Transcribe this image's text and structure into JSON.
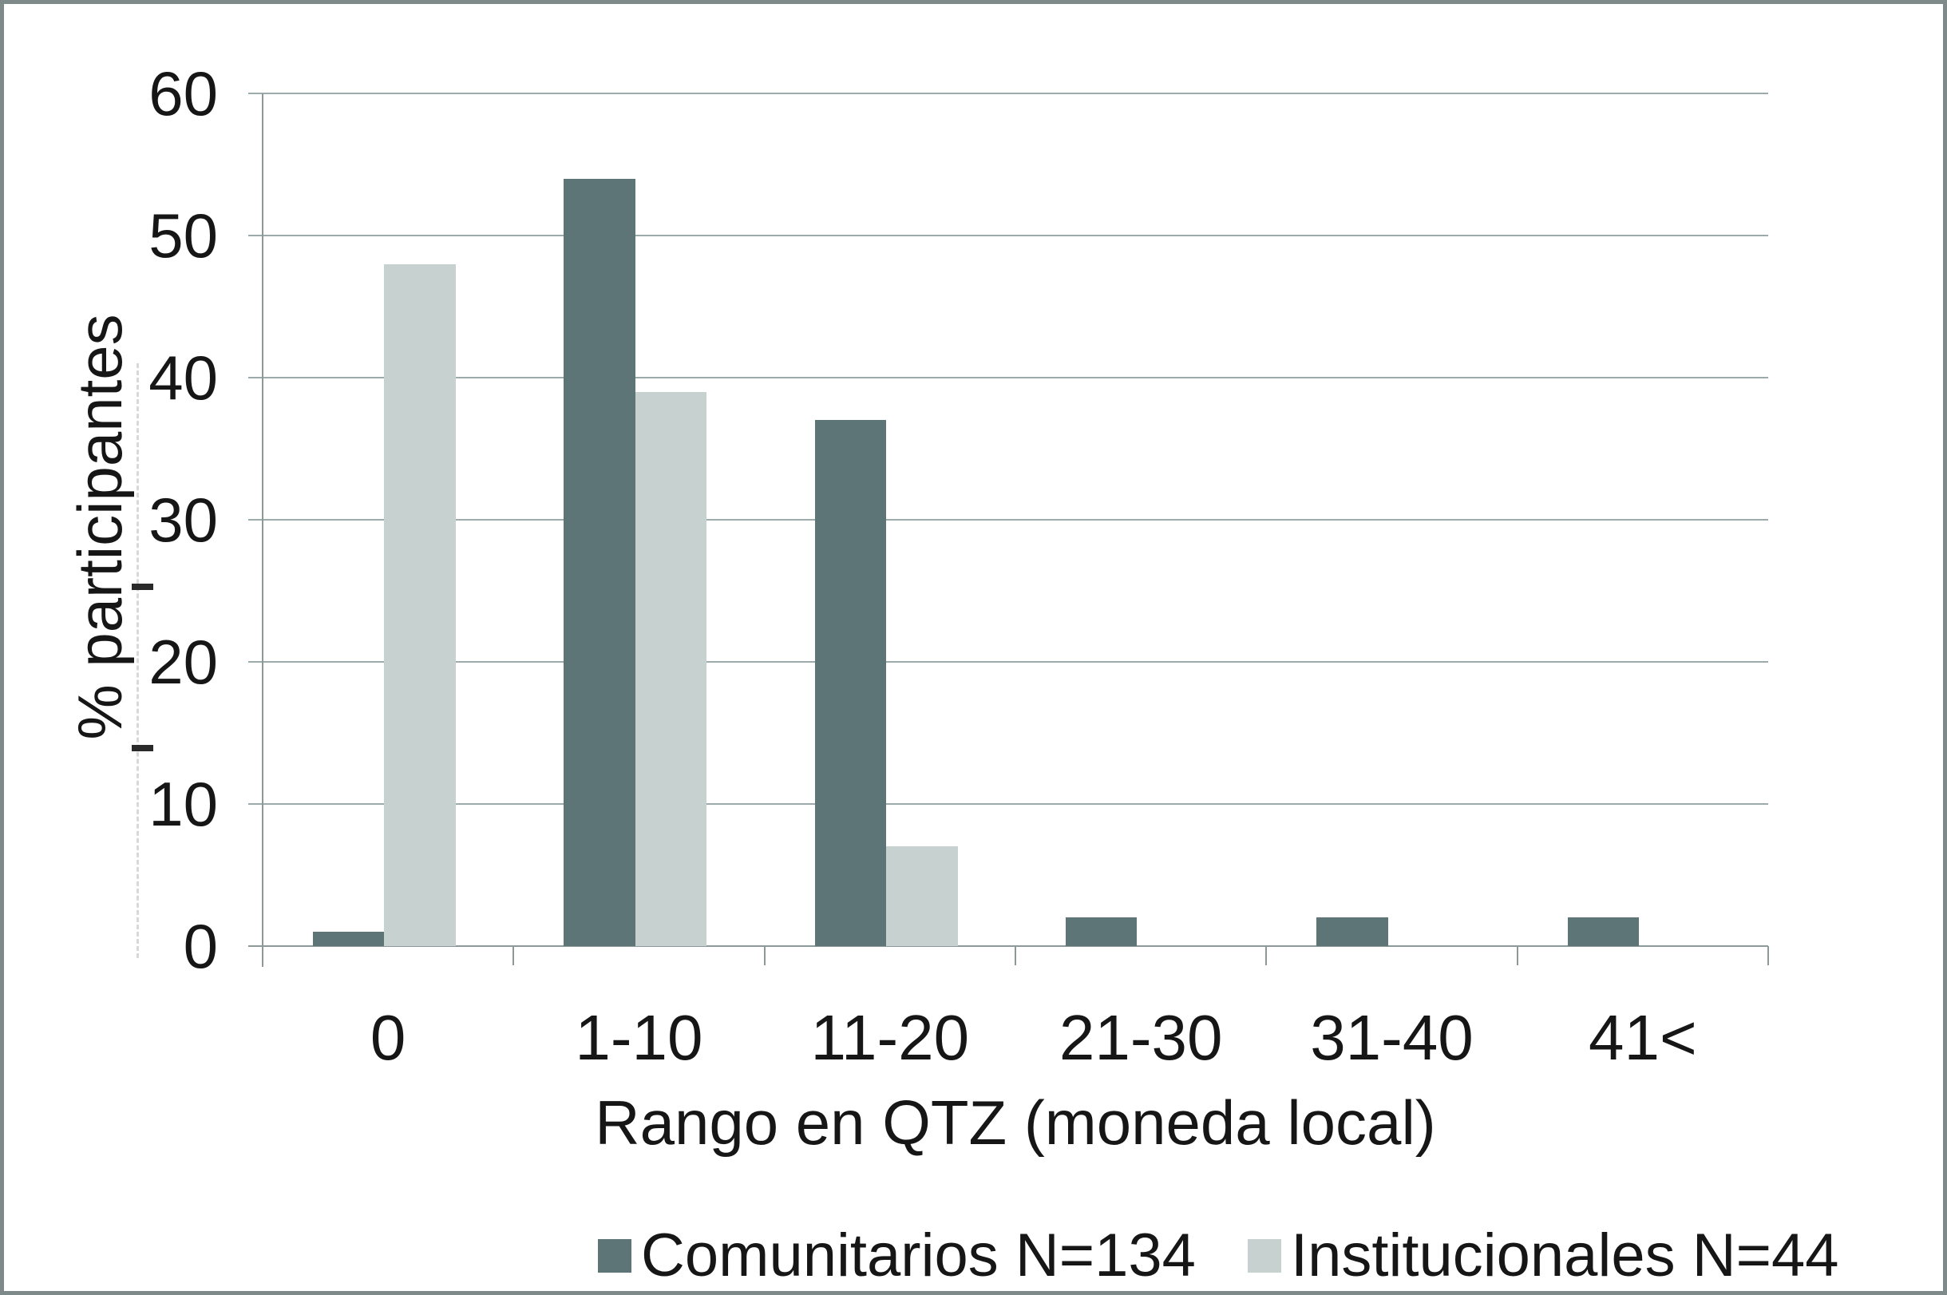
{
  "figure": {
    "y_axis_title": "% participantes",
    "x_axis_title": "Rango en QTZ (moneda local)"
  },
  "chart_data": {
    "type": "bar",
    "title": "",
    "categories": [
      "0",
      "1-10",
      "11-20",
      "21-30",
      "31-40",
      "41<"
    ],
    "series": [
      {
        "name": "Comunitarios N=134",
        "color": "#5d7577",
        "values": [
          1,
          54,
          37,
          2,
          2,
          2
        ]
      },
      {
        "name": "Institucionales N=44",
        "color": "#c7d1cf",
        "values": [
          48,
          39,
          7,
          0,
          0,
          0
        ]
      }
    ],
    "xlabel": "Rango en QTZ (moneda local)",
    "ylabel": "% participantes",
    "ylim": [
      0,
      60
    ],
    "ytick_step": 10,
    "y_tick_labels": [
      "0",
      "10",
      "20",
      "30",
      "40",
      "50",
      "60"
    ],
    "grid": "horizontal-only",
    "legend_position": "bottom"
  },
  "colors": {
    "series_dark": "#5d7577",
    "series_light": "#c7d1cf",
    "gridline": "#9daaab",
    "axis": "#8d9899",
    "frame_border": "#7e8a8a",
    "text": "#161616",
    "background": "#ffffff"
  }
}
